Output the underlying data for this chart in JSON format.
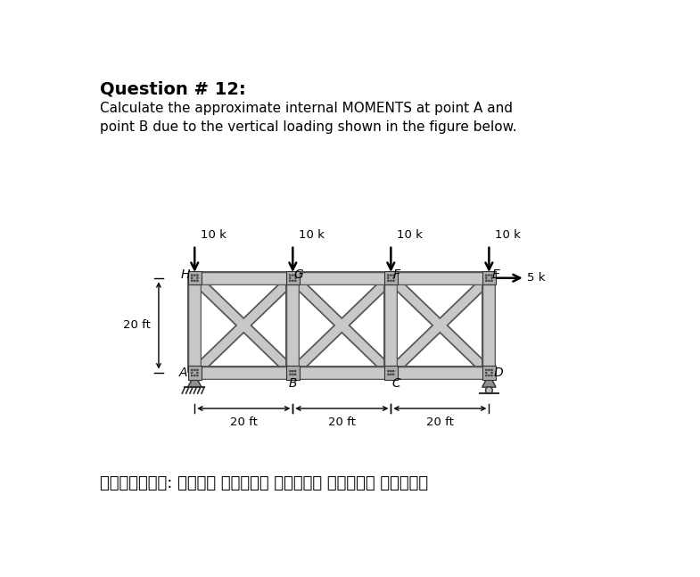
{
  "title": "Question # 12:",
  "subtitle1": "Calculate the approximate internal MOMENTS at point A and",
  "subtitle2": "point B due to the vertical loading shown in the figure below.",
  "footer": "निर्देश: अपने अंतिम उत्तर बॉक्स करें।",
  "bg_color": "#ffffff",
  "struct_fill": "#c8c8c8",
  "struct_edge": "#555555",
  "joint_fill": "#aaaaaa",
  "joint_edge": "#333333",
  "ox": 1.55,
  "oy": 2.05,
  "pw": 1.42,
  "ph": 1.38,
  "lw_chord": 9,
  "lw_diag": 7,
  "lw_vert": 9
}
